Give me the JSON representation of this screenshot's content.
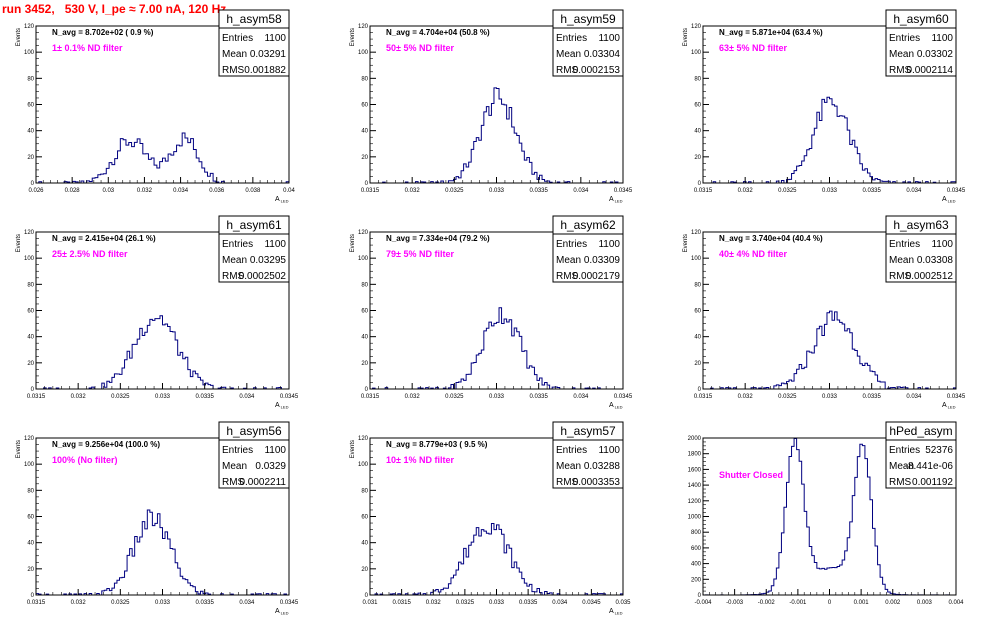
{
  "run_title": "run 3452,   530 V, I_pe ≈ 7.00 nA, 120 Hz",
  "stat_labels": {
    "entries": "Entries",
    "mean": "Mean",
    "rms": "RMS"
  },
  "colors": {
    "histogram": "#000080",
    "title_text": "#ff0000",
    "annotation": "#ff00ff"
  },
  "chart_data": [
    {
      "type": "bar",
      "name": "h_asym58",
      "ylabel": "Events",
      "xlabel": "A_LED",
      "navg": "N_avg = 8.702e+02 ( 0.9 %)",
      "filter": "1± 0.1% ND filter",
      "entries": "1100",
      "mean": "0.03291",
      "rms": "0.001882",
      "xlim": [
        0.026,
        0.04
      ],
      "ylim": [
        0,
        120
      ],
      "xticks": [
        "0.026",
        "0.028",
        "0.03",
        "0.032",
        "0.034",
        "0.036",
        "0.038",
        "0.04"
      ],
      "yticks": [
        "0",
        "20",
        "40",
        "60",
        "80",
        "100",
        "120"
      ],
      "peaks": [
        {
          "mu": 0.0312,
          "sigma": 0.0009,
          "amp": 32
        },
        {
          "mu": 0.0342,
          "sigma": 0.0008,
          "amp": 34
        }
      ],
      "bins": 90
    },
    {
      "type": "bar",
      "name": "h_asym59",
      "ylabel": "Events",
      "xlabel": "A_LED",
      "navg": "N_avg = 4.704e+04 (50.8 %)",
      "filter": "50± 5% ND filter",
      "entries": "1100",
      "mean": "0.03304",
      "rms": "0.0002153",
      "xlim": [
        0.0315,
        0.0345
      ],
      "ylim": [
        0,
        120
      ],
      "xticks": [
        "0.0315",
        "0.032",
        "0.0325",
        "0.033",
        "0.0335",
        "0.034",
        "0.0345"
      ],
      "yticks": [
        "0",
        "20",
        "40",
        "60",
        "80",
        "100",
        "120"
      ],
      "peaks": [
        {
          "mu": 0.03302,
          "sigma": 0.00021,
          "amp": 65
        }
      ],
      "bins": 100
    },
    {
      "type": "bar",
      "name": "h_asym60",
      "ylabel": "Events",
      "xlabel": "A_LED",
      "navg": "N_avg = 5.871e+04 (63.4 %)",
      "filter": "63± 5% ND filter",
      "entries": "1100",
      "mean": "0.03302",
      "rms": "0.0002114",
      "xlim": [
        0.0315,
        0.0345
      ],
      "ylim": [
        0,
        120
      ],
      "xticks": [
        "0.0315",
        "0.032",
        "0.0325",
        "0.033",
        "0.0335",
        "0.034",
        "0.0345"
      ],
      "yticks": [
        "0",
        "20",
        "40",
        "60",
        "80",
        "100",
        "120"
      ],
      "peaks": [
        {
          "mu": 0.03302,
          "sigma": 0.00021,
          "amp": 62
        }
      ],
      "bins": 100
    },
    {
      "type": "bar",
      "name": "h_asym61",
      "ylabel": "Events",
      "xlabel": "A_LED",
      "navg": "N_avg = 2.415e+04 (26.1 %)",
      "filter": "25± 2.5% ND filter",
      "entries": "1100",
      "mean": "0.03295",
      "rms": "0.0002502",
      "xlim": [
        0.0315,
        0.0345
      ],
      "ylim": [
        0,
        120
      ],
      "xticks": [
        "0.0315",
        "0.032",
        "0.0325",
        "0.033",
        "0.0335",
        "0.034",
        "0.0345"
      ],
      "yticks": [
        "0",
        "20",
        "40",
        "60",
        "80",
        "100",
        "120"
      ],
      "peaks": [
        {
          "mu": 0.03292,
          "sigma": 0.00025,
          "amp": 56
        }
      ],
      "bins": 100
    },
    {
      "type": "bar",
      "name": "h_asym62",
      "ylabel": "Events",
      "xlabel": "A_LED",
      "navg": "N_avg = 7.334e+04 (79.2 %)",
      "filter": "79± 5% ND filter",
      "entries": "1100",
      "mean": "0.03309",
      "rms": "0.0002179",
      "xlim": [
        0.0315,
        0.0345
      ],
      "ylim": [
        0,
        120
      ],
      "xticks": [
        "0.0315",
        "0.032",
        "0.0325",
        "0.033",
        "0.0335",
        "0.034",
        "0.0345"
      ],
      "yticks": [
        "0",
        "20",
        "40",
        "60",
        "80",
        "100",
        "120"
      ],
      "peaks": [
        {
          "mu": 0.03306,
          "sigma": 0.00022,
          "amp": 58
        }
      ],
      "bins": 100
    },
    {
      "type": "bar",
      "name": "h_asym63",
      "ylabel": "Events",
      "xlabel": "A_LED",
      "navg": "N_avg = 3.740e+04 (40.4 %)",
      "filter": "40± 4% ND filter",
      "entries": "1100",
      "mean": "0.03308",
      "rms": "0.0002512",
      "xlim": [
        0.0315,
        0.0345
      ],
      "ylim": [
        0,
        120
      ],
      "xticks": [
        "0.0315",
        "0.032",
        "0.0325",
        "0.033",
        "0.0335",
        "0.034",
        "0.0345"
      ],
      "yticks": [
        "0",
        "20",
        "40",
        "60",
        "80",
        "100",
        "120"
      ],
      "peaks": [
        {
          "mu": 0.03306,
          "sigma": 0.00025,
          "amp": 55
        }
      ],
      "bins": 100
    },
    {
      "type": "bar",
      "name": "h_asym56",
      "ylabel": "Events",
      "xlabel": "A_LED",
      "navg": "N_avg = 9.256e+04 (100.0 %)",
      "filter": "100% (No filter)",
      "entries": "1100",
      "mean": "0.0329",
      "rms": "0.0002211",
      "xlim": [
        0.0315,
        0.0345
      ],
      "ylim": [
        0,
        120
      ],
      "xticks": [
        "0.0315",
        "0.032",
        "0.0325",
        "0.033",
        "0.0335",
        "0.034",
        "0.0345"
      ],
      "yticks": [
        "0",
        "20",
        "40",
        "60",
        "80",
        "100",
        "120"
      ],
      "peaks": [
        {
          "mu": 0.03288,
          "sigma": 0.00022,
          "amp": 58
        }
      ],
      "bins": 100
    },
    {
      "type": "bar",
      "name": "h_asym57",
      "ylabel": "Events",
      "xlabel": "A_LED",
      "navg": "N_avg = 8.779e+03 ( 9.5 %)",
      "filter": "10± 1% ND filter",
      "entries": "1100",
      "mean": "0.03288",
      "rms": "0.0003353",
      "xlim": [
        0.031,
        0.035
      ],
      "ylim": [
        0,
        120
      ],
      "xticks": [
        "0.031",
        "0.0315",
        "0.032",
        "0.0325",
        "0.033",
        "0.0335",
        "0.034",
        "0.0345",
        "0.035"
      ],
      "yticks": [
        "0",
        "20",
        "40",
        "60",
        "80",
        "100",
        "120"
      ],
      "peaks": [
        {
          "mu": 0.03286,
          "sigma": 0.00033,
          "amp": 55
        }
      ],
      "bins": 100
    },
    {
      "type": "bar",
      "name": "hPed_asym",
      "ylabel": "",
      "xlabel": "",
      "navg": "",
      "filter": "Shutter Closed",
      "entries": "52376",
      "mean": "-8.441e-06",
      "rms": "0.001192",
      "xlim": [
        -0.004,
        0.004
      ],
      "ylim": [
        0,
        2000
      ],
      "xticks": [
        "-0.004",
        "-0.003",
        "-0.002",
        "-0.001",
        "0",
        "0.001",
        "0.002",
        "0.003",
        "0.004"
      ],
      "yticks": [
        "0",
        "200",
        "400",
        "600",
        "800",
        "1000",
        "1200",
        "1400",
        "1600",
        "1800",
        "2000"
      ],
      "peaks": [
        {
          "mu": -0.0011,
          "sigma": 0.00028,
          "amp": 1860
        },
        {
          "mu": 0.00105,
          "sigma": 0.00028,
          "amp": 1760
        },
        {
          "mu": 0.0,
          "sigma": 0.0008,
          "amp": 330
        }
      ],
      "bins": 100
    }
  ]
}
